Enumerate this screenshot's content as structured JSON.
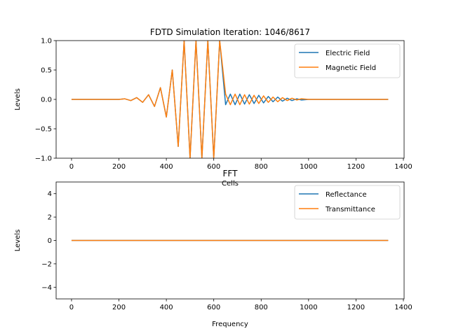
{
  "chart_data": [
    {
      "type": "line",
      "title": "FDTD Simulation Iteration: 1046/8617",
      "xlabel": "Cells",
      "ylabel": "Levels",
      "xlim": [
        -65,
        1403
      ],
      "ylim": [
        -1.0,
        1.0
      ],
      "xticks": [
        0,
        200,
        400,
        600,
        800,
        1000,
        1200,
        1400
      ],
      "yticks": [
        -1.0,
        -0.5,
        0.0,
        0.5,
        1.0
      ],
      "xtick_labels": [
        "0",
        "200",
        "400",
        "600",
        "800",
        "1000",
        "1200",
        "1400"
      ],
      "ytick_labels": [
        "−1.0",
        "−0.5",
        "0.0",
        "0.5",
        "1.0"
      ],
      "grid": false,
      "legend": "top-right",
      "series": [
        {
          "name": "Electric Field",
          "color": "#1f77b4",
          "x": [
            0,
            200,
            225,
            250,
            275,
            300,
            325,
            350,
            375,
            400,
            425,
            450,
            475,
            500,
            525,
            550,
            575,
            600,
            625,
            650,
            670,
            690,
            710,
            730,
            750,
            770,
            790,
            810,
            830,
            850,
            870,
            890,
            910,
            930,
            950,
            970,
            1000,
            1336
          ],
          "values": [
            0,
            0,
            0.01,
            -0.02,
            0.03,
            -0.05,
            0.08,
            -0.12,
            0.2,
            -0.3,
            0.5,
            -0.8,
            1.0,
            -1.0,
            1.0,
            -1.0,
            1.0,
            -1.0,
            1.0,
            -0.09,
            0.09,
            -0.09,
            0.09,
            -0.08,
            0.08,
            -0.07,
            0.07,
            -0.06,
            0.05,
            -0.04,
            0.04,
            -0.03,
            0.02,
            -0.02,
            0.01,
            -0.01,
            0,
            0
          ]
        },
        {
          "name": "Magnetic Field",
          "color": "#ff7f0e",
          "x": [
            0,
            200,
            225,
            250,
            275,
            300,
            325,
            350,
            375,
            400,
            425,
            450,
            475,
            500,
            525,
            550,
            575,
            600,
            625,
            650,
            670,
            690,
            710,
            730,
            750,
            770,
            790,
            810,
            830,
            850,
            870,
            890,
            910,
            930,
            950,
            970,
            1000,
            1336
          ],
          "values": [
            0,
            0,
            0.01,
            -0.02,
            0.03,
            -0.05,
            0.08,
            -0.12,
            0.2,
            -0.3,
            0.5,
            -0.8,
            1.0,
            -1.0,
            1.0,
            -1.0,
            1.0,
            -1.0,
            1.0,
            0.09,
            -0.09,
            0.09,
            -0.09,
            0.08,
            -0.08,
            0.07,
            -0.07,
            0.06,
            -0.05,
            0.04,
            -0.04,
            0.03,
            -0.02,
            0.02,
            -0.01,
            0.01,
            0,
            0
          ]
        }
      ]
    },
    {
      "type": "line",
      "title": "FFT",
      "xlabel": "Frequency",
      "ylabel": "Levels",
      "xlim": [
        -65,
        1403
      ],
      "ylim": [
        -5,
        5
      ],
      "xticks": [
        0,
        200,
        400,
        600,
        800,
        1000,
        1200,
        1400
      ],
      "yticks": [
        -4,
        -2,
        0,
        2,
        4
      ],
      "xtick_labels": [
        "0",
        "200",
        "400",
        "600",
        "800",
        "1000",
        "1200",
        "1400"
      ],
      "ytick_labels": [
        "−4",
        "−2",
        "0",
        "2",
        "4"
      ],
      "grid": false,
      "legend": "top-right",
      "series": [
        {
          "name": "Reflectance",
          "color": "#1f77b4",
          "x": [
            0,
            1336
          ],
          "values": [
            0,
            0
          ]
        },
        {
          "name": "Transmittance",
          "color": "#ff7f0e",
          "x": [
            0,
            1336
          ],
          "values": [
            0,
            0
          ]
        }
      ]
    }
  ]
}
